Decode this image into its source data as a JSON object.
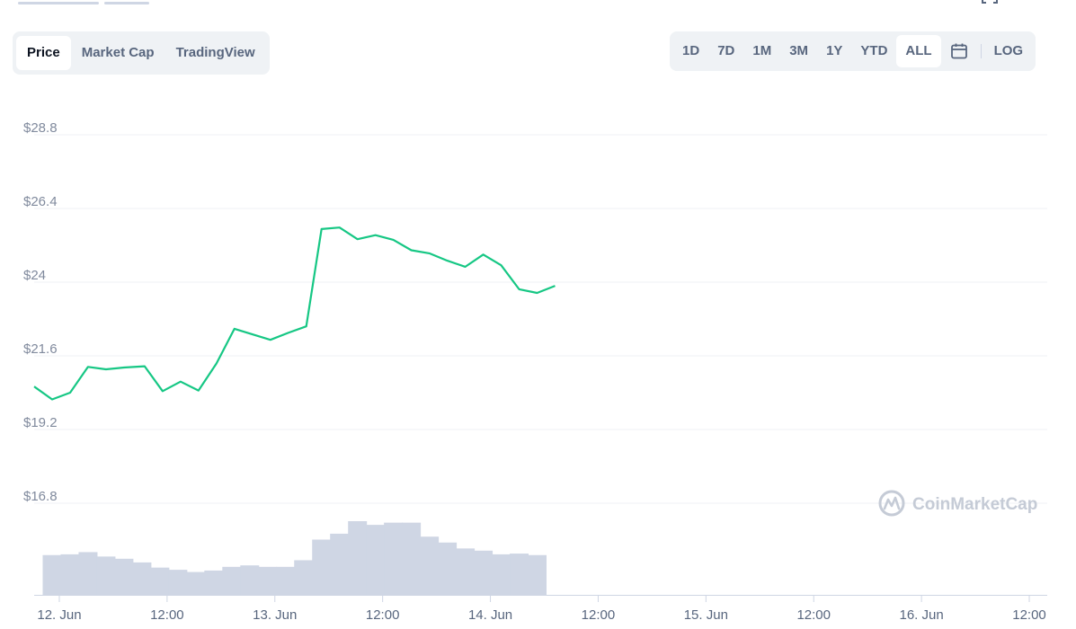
{
  "tabs": [
    {
      "label": "Price",
      "active": true
    },
    {
      "label": "Market Cap",
      "active": false
    },
    {
      "label": "TradingView",
      "active": false
    }
  ],
  "ranges": [
    {
      "label": "1D",
      "active": false
    },
    {
      "label": "7D",
      "active": false
    },
    {
      "label": "1M",
      "active": false
    },
    {
      "label": "3M",
      "active": false
    },
    {
      "label": "1Y",
      "active": false
    },
    {
      "label": "YTD",
      "active": false
    },
    {
      "label": "ALL",
      "active": true
    }
  ],
  "calendar_icon": "calendar-icon",
  "log_label": "LOG",
  "watermark": {
    "text": "CoinMarketCap",
    "icon": "coinmarketcap-logo-icon"
  },
  "colors": {
    "line": "#16c784",
    "volume": "#cfd6e4",
    "grid": "#eff2f5",
    "axis": "#cfd6e4"
  },
  "chart_data": {
    "type": "line",
    "y_ticks": [
      "$28.8",
      "$26.4",
      "$24",
      "$21.6",
      "$19.2",
      "$16.8"
    ],
    "y_tick_values": [
      28.8,
      26.4,
      24,
      21.6,
      19.2,
      16.8
    ],
    "ylim": [
      16.8,
      28.8
    ],
    "x_ticks": [
      "12. Jun",
      "12:00",
      "13. Jun",
      "12:00",
      "14. Jun",
      "12:00",
      "15. Jun",
      "12:00",
      "16. Jun",
      "12:00"
    ],
    "x_tick_hours": [
      0,
      12,
      24,
      36,
      48,
      60,
      72,
      84,
      96,
      108
    ],
    "xlim_hours": [
      -2.8,
      110
    ],
    "grid": true,
    "series": [
      {
        "values": [
          [
            -2.8,
            20.6
          ],
          [
            -0.8,
            20.18
          ],
          [
            1.2,
            20.4
          ],
          [
            3.2,
            21.24
          ],
          [
            5.2,
            21.16
          ],
          [
            7.2,
            21.22
          ],
          [
            9.5,
            21.26
          ],
          [
            11.5,
            20.45
          ],
          [
            13.5,
            20.76
          ],
          [
            15.5,
            20.47
          ],
          [
            17.5,
            21.35
          ],
          [
            19.5,
            22.48
          ],
          [
            21.5,
            22.3
          ],
          [
            23.5,
            22.12
          ],
          [
            25.5,
            22.35
          ],
          [
            27.5,
            22.56
          ],
          [
            29.2,
            25.73
          ],
          [
            31.2,
            25.78
          ],
          [
            33.2,
            25.4
          ],
          [
            35.2,
            25.53
          ],
          [
            37.2,
            25.38
          ],
          [
            39.2,
            25.04
          ],
          [
            41.2,
            24.94
          ],
          [
            43.2,
            24.7
          ],
          [
            45.2,
            24.5
          ],
          [
            47.2,
            24.9
          ],
          [
            49.2,
            24.55
          ],
          [
            51.2,
            23.77
          ],
          [
            53.2,
            23.65
          ],
          [
            55.2,
            23.88
          ]
        ]
      }
    ],
    "volume": {
      "hours": [
        -0.8,
        1.2,
        3.2,
        5.2,
        7.2,
        9.2,
        11.2,
        13.2,
        15.2,
        17.2,
        19.2,
        21.2,
        23.2,
        25.2,
        27.2,
        29.2,
        31.2,
        33.2,
        35.2,
        37.2,
        39.2,
        41.2,
        43.2,
        45.2,
        47.2,
        49.2,
        51.2,
        53.2,
        55.2
      ],
      "relative_heights": [
        0.54,
        0.55,
        0.58,
        0.52,
        0.49,
        0.44,
        0.37,
        0.34,
        0.31,
        0.33,
        0.38,
        0.4,
        0.38,
        0.38,
        0.47,
        0.75,
        0.83,
        1.0,
        0.95,
        0.98,
        0.98,
        0.79,
        0.71,
        0.63,
        0.6,
        0.55,
        0.56,
        0.54,
        0.0
      ]
    }
  }
}
